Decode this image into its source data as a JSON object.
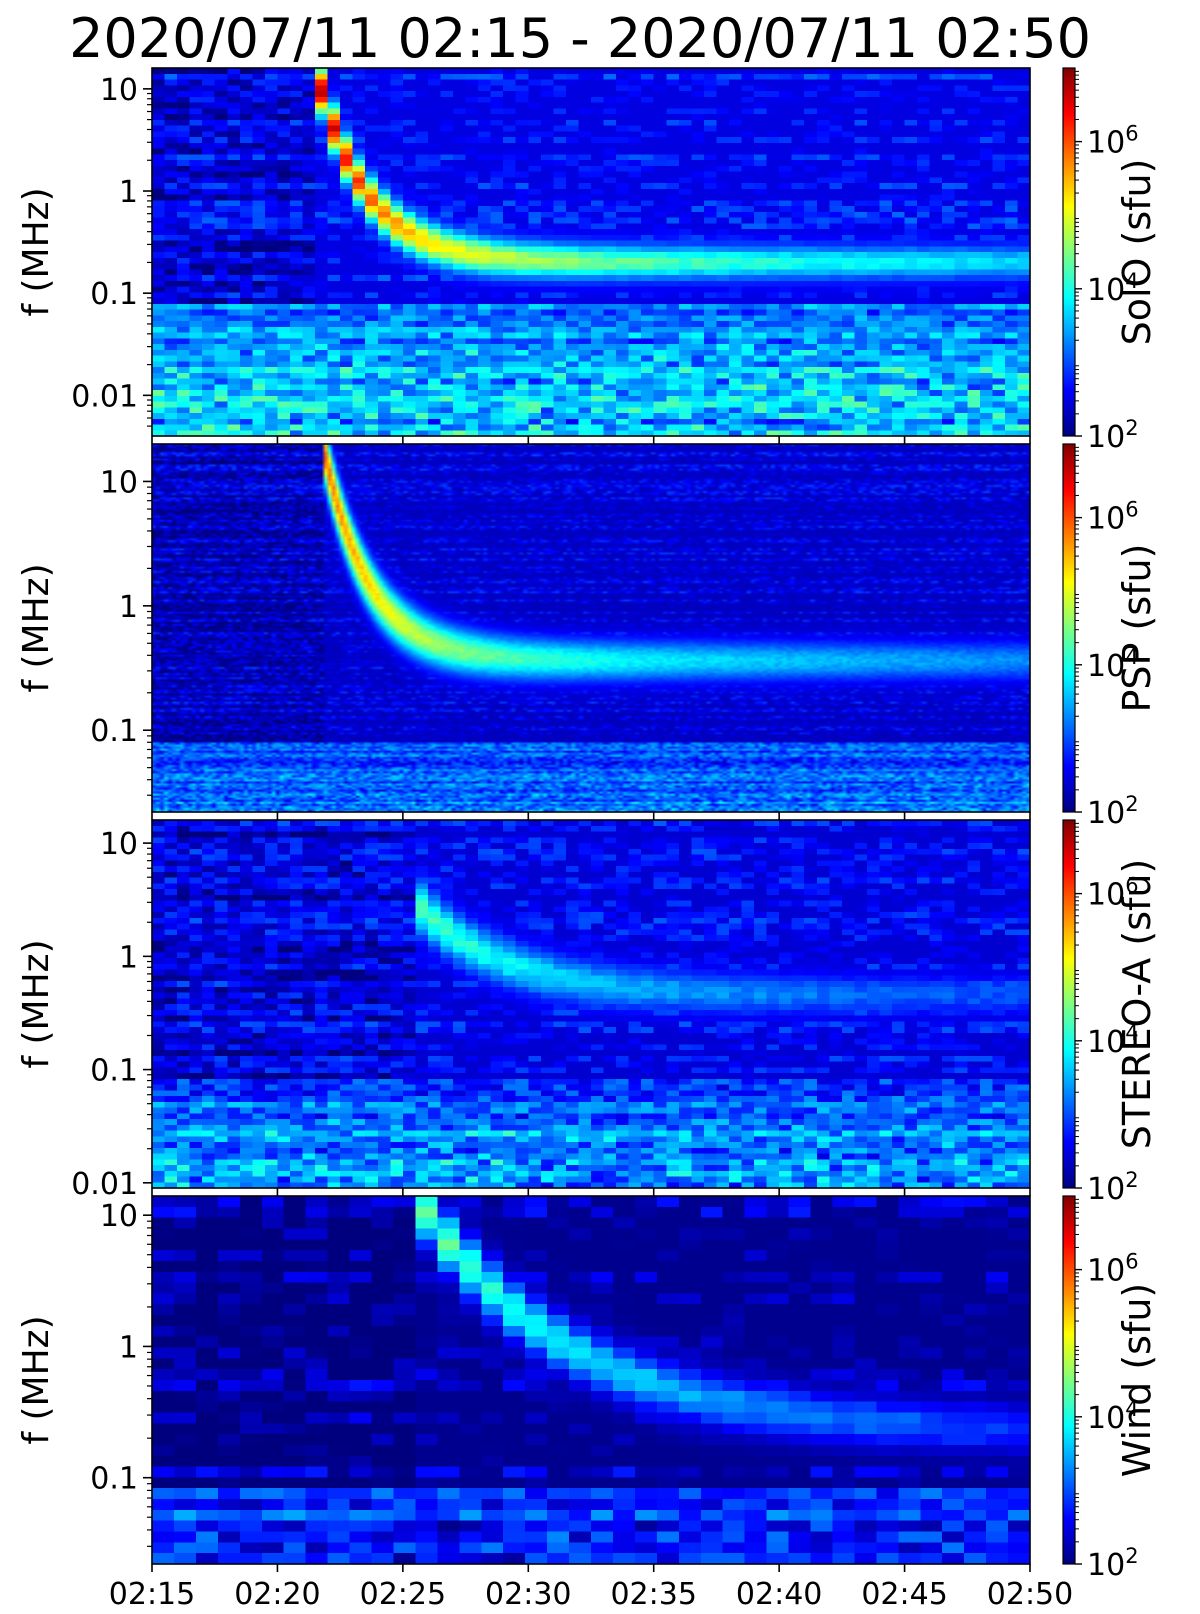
{
  "title": "2020/07/11 02:15 - 2020/07/11 02:50",
  "colormap": [
    "#00007f",
    "#0000ff",
    "#007fff",
    "#00ffff",
    "#7fff7f",
    "#ffff00",
    "#ff7f00",
    "#ff0000",
    "#7f0000"
  ],
  "chart_data": {
    "type": "heatmap",
    "title": "2020/07/11 02:15 - 2020/07/11 02:50",
    "xlabel": "",
    "x_ticks": [
      "02:15",
      "02:20",
      "02:25",
      "02:30",
      "02:35",
      "02:40",
      "02:45",
      "02:50"
    ],
    "x_range_minutes": [
      0,
      35
    ],
    "colorbar": {
      "scale": "log",
      "range_sfu": [
        100,
        10000000
      ],
      "tick_values": [
        100,
        10000,
        1000000
      ],
      "tick_labels": [
        {
          "base": "10",
          "exp": "2"
        },
        {
          "base": "10",
          "exp": "4"
        },
        {
          "base": "10",
          "exp": "6"
        }
      ]
    },
    "panels": [
      {
        "name": "SolO",
        "colorbar_label": "SolO (sfu)",
        "ylabel": "f (MHz)",
        "yscale": "log",
        "ylim_mhz": [
          0.004,
          16
        ],
        "y_ticks": [
          {
            "value": 10,
            "label": "10"
          },
          {
            "value": 1,
            "label": "1"
          },
          {
            "value": 0.1,
            "label": "0.1"
          },
          {
            "value": 0.01,
            "label": "0.01"
          }
        ],
        "burst": {
          "onset_minutes": 6.5,
          "decay_minutes": 2.0,
          "low_freq_mhz": 0.2,
          "start_freq_mhz": 16,
          "peak_sfu": 7000000
        },
        "texture": "coarse",
        "noise_sfu": 300
      },
      {
        "name": "PSP",
        "colorbar_label": "PSP (sfu)",
        "ylabel": "f (MHz)",
        "yscale": "log",
        "ylim_mhz": [
          0.022,
          20
        ],
        "y_ticks": [
          {
            "value": 10,
            "label": "10"
          },
          {
            "value": 1,
            "label": "1"
          },
          {
            "value": 0.1,
            "label": "0.1"
          }
        ],
        "burst": {
          "onset_minutes": 6.8,
          "decay_minutes": 1.8,
          "low_freq_mhz": 0.36,
          "start_freq_mhz": 20,
          "peak_sfu": 1000000
        },
        "texture": "fine",
        "noise_sfu": 200
      },
      {
        "name": "STEREO-A",
        "colorbar_label": "STEREO-A (sfu)",
        "ylabel": "f (MHz)",
        "yscale": "log",
        "ylim_mhz": [
          0.009,
          16
        ],
        "y_ticks": [
          {
            "value": 10,
            "label": "10"
          },
          {
            "value": 1,
            "label": "1"
          },
          {
            "value": 0.1,
            "label": "0.1"
          },
          {
            "value": 0.01,
            "label": "0.01"
          }
        ],
        "burst": {
          "onset_minutes": 10.5,
          "decay_minutes": 3.5,
          "low_freq_mhz": 0.45,
          "start_freq_mhz": 3,
          "peak_sfu": 20000
        },
        "texture": "coarse",
        "noise_sfu": 250
      },
      {
        "name": "Wind",
        "colorbar_label": "Wind (sfu)",
        "ylabel": "f (MHz)",
        "yscale": "log",
        "ylim_mhz": [
          0.022,
          14
        ],
        "y_ticks": [
          {
            "value": 10,
            "label": "10"
          },
          {
            "value": 1,
            "label": "1"
          },
          {
            "value": 0.1,
            "label": "0.1"
          }
        ],
        "burst": {
          "onset_minutes": 10.5,
          "decay_minutes": 6.0,
          "low_freq_mhz": 0.22,
          "start_freq_mhz": 14,
          "peak_sfu": 30000
        },
        "texture": "blocky",
        "noise_sfu": 120
      }
    ]
  }
}
